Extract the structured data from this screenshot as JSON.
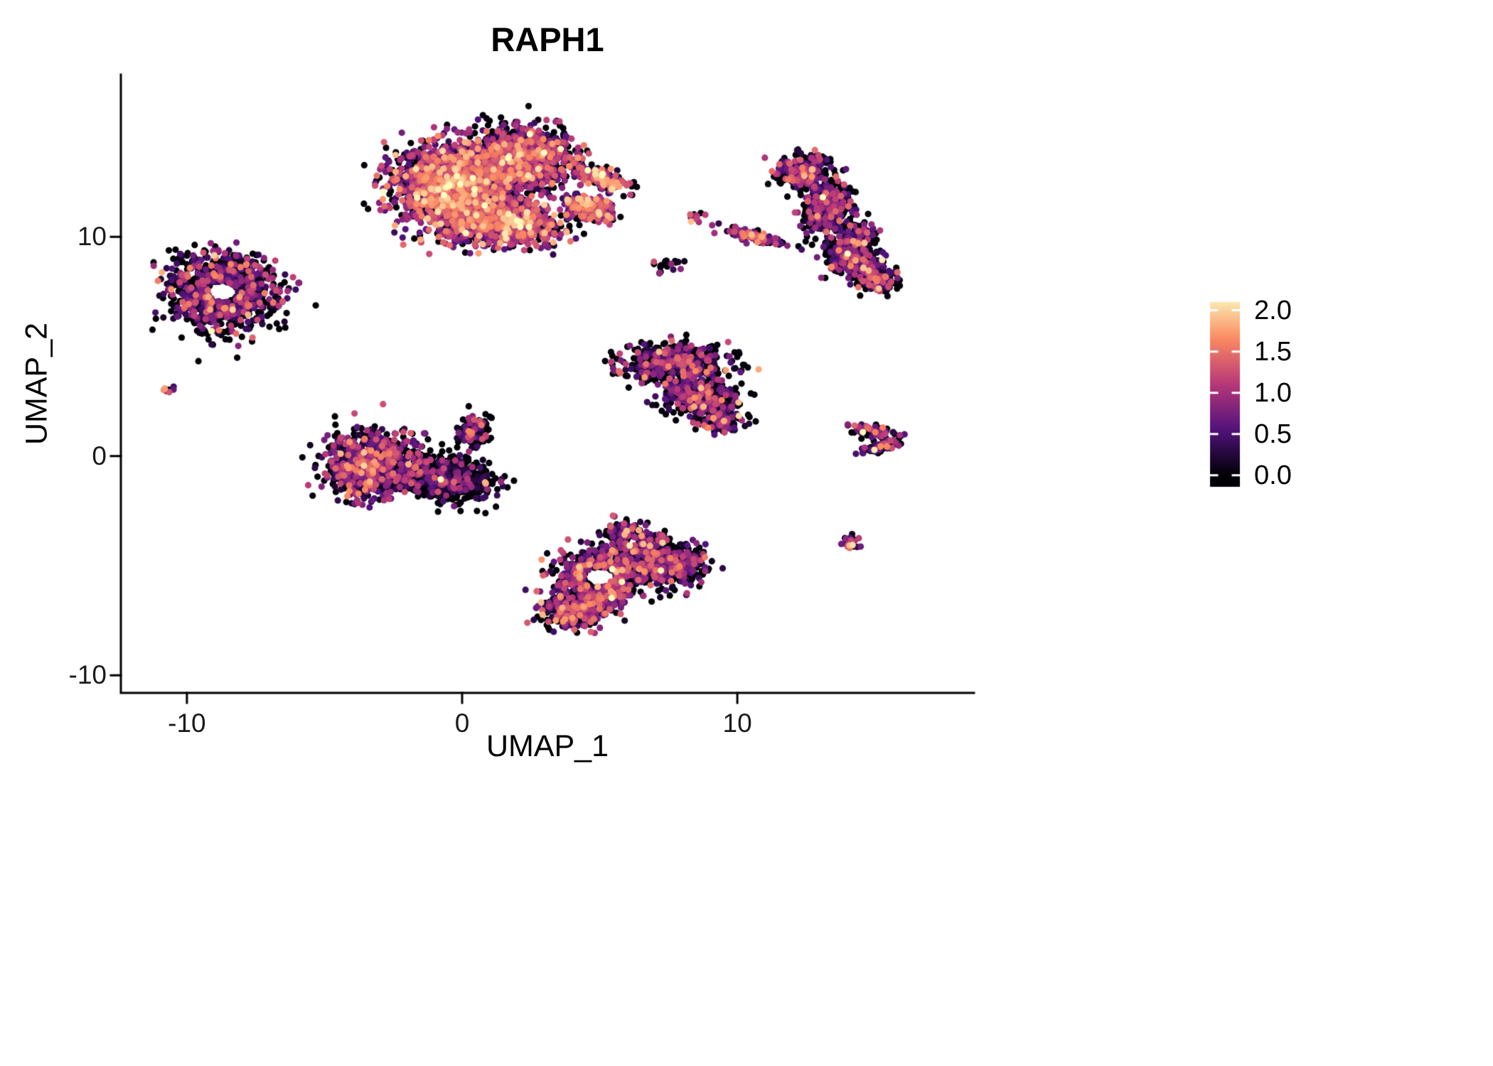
{
  "chart_data": {
    "type": "scatter",
    "subtype": "umap-feature-plot",
    "title": "RAPH1",
    "xlabel": "UMAP_1",
    "ylabel": "UMAP_2",
    "xlim": [
      -12.4,
      18.6
    ],
    "ylim": [
      -10.8,
      17.4
    ],
    "x_ticks": [
      {
        "label": "-10",
        "value": -10
      },
      {
        "label": "0",
        "value": 0
      },
      {
        "label": "10",
        "value": 10
      }
    ],
    "y_ticks": [
      {
        "label": "-10",
        "value": -10
      },
      {
        "label": "0",
        "value": 0
      },
      {
        "label": "10",
        "value": 10
      }
    ],
    "grid": false,
    "legend_position": "right",
    "point_radius_px": 4.6,
    "axis_color": "#000000",
    "background_color": "#ffffff",
    "color_scale_max": 2.2,
    "colorbar": {
      "stops": [
        "#000004",
        "#51127c",
        "#b73779",
        "#fb8861",
        "#fcfdbf"
      ],
      "ticks": [
        {
          "label": "2.0",
          "value": 2.0
        },
        {
          "label": "1.5",
          "value": 1.5
        },
        {
          "label": "1.0",
          "value": 1.0
        },
        {
          "label": "0.5",
          "value": 0.5
        },
        {
          "label": "0.0",
          "value": 0.0
        }
      ]
    },
    "clusters": [
      {
        "name": "top-main-core",
        "cx": -0.2,
        "cy": 12.3,
        "rx": 2.0,
        "ry": 1.8,
        "rot": 0,
        "n": 2300,
        "p0": 0.25,
        "mu": 0.95
      },
      {
        "name": "top-main-upper-right",
        "cx": 2.2,
        "cy": 13.6,
        "rx": 1.7,
        "ry": 1.3,
        "rot": 0,
        "n": 1300,
        "p0": 0.4,
        "mu": 0.75
      },
      {
        "name": "top-main-lower-band",
        "cx": 1.6,
        "cy": 10.6,
        "rx": 1.9,
        "ry": 1.0,
        "rot": 0,
        "n": 900,
        "p0": 0.3,
        "mu": 0.95
      },
      {
        "name": "top-main-beak-upper",
        "cx": 5.0,
        "cy": 12.7,
        "rx": 1.1,
        "ry": 0.4,
        "rot": -30,
        "n": 200,
        "p0": 0.3,
        "mu": 1.0
      },
      {
        "name": "top-main-beak-lower",
        "cx": 4.6,
        "cy": 11.3,
        "rx": 0.9,
        "ry": 0.55,
        "rot": -20,
        "n": 260,
        "p0": 0.25,
        "mu": 1.0
      },
      {
        "name": "left-ring",
        "cx": -8.7,
        "cy": 7.5,
        "rx": 2.0,
        "ry": 1.7,
        "rot": -10,
        "n": 950,
        "p0": 0.45,
        "mu": 0.6,
        "hole": 0.3
      },
      {
        "name": "far-left-dot",
        "cx": -10.75,
        "cy": 3.0,
        "rx": 0.22,
        "ry": 0.18,
        "rot": 0,
        "n": 10,
        "p0": 0.2,
        "mu": 1.0
      },
      {
        "name": "center-left-west",
        "cx": -3.3,
        "cy": -0.4,
        "rx": 1.6,
        "ry": 1.5,
        "rot": 0,
        "n": 850,
        "p0": 0.38,
        "mu": 0.7
      },
      {
        "name": "center-left-east",
        "cx": -0.7,
        "cy": -1.0,
        "rx": 1.7,
        "ry": 1.0,
        "rot": -15,
        "n": 750,
        "p0": 0.72,
        "mu": 0.45
      },
      {
        "name": "center-left-spur",
        "cx": 0.4,
        "cy": 1.2,
        "rx": 0.6,
        "ry": 0.7,
        "rot": 0,
        "n": 140,
        "p0": 0.6,
        "mu": 0.5
      },
      {
        "name": "bottom-ring",
        "cx": 5.0,
        "cy": -5.5,
        "rx": 1.5,
        "ry": 1.2,
        "rot": 0,
        "n": 600,
        "p0": 0.35,
        "mu": 0.75,
        "hole": 0.4
      },
      {
        "name": "bottom-east",
        "cx": 7.3,
        "cy": -4.8,
        "rx": 1.5,
        "ry": 1.0,
        "rot": -20,
        "n": 700,
        "p0": 0.45,
        "mu": 0.6
      },
      {
        "name": "bottom-south",
        "cx": 4.2,
        "cy": -7.0,
        "rx": 1.3,
        "ry": 0.8,
        "rot": 10,
        "n": 450,
        "p0": 0.35,
        "mu": 0.75
      },
      {
        "name": "bottom-north-bump",
        "cx": 6.0,
        "cy": -3.6,
        "rx": 0.8,
        "ry": 0.5,
        "rot": 0,
        "n": 150,
        "p0": 0.5,
        "mu": 0.6
      },
      {
        "name": "mid-right-top",
        "cx": 7.8,
        "cy": 4.2,
        "rx": 1.9,
        "ry": 0.9,
        "rot": 0,
        "n": 550,
        "p0": 0.5,
        "mu": 0.6
      },
      {
        "name": "mid-right-mid",
        "cx": 8.6,
        "cy": 2.6,
        "rx": 1.4,
        "ry": 0.9,
        "rot": -20,
        "n": 450,
        "p0": 0.55,
        "mu": 0.55
      },
      {
        "name": "mid-right-tip",
        "cx": 9.4,
        "cy": 1.6,
        "rx": 0.7,
        "ry": 0.5,
        "rot": 0,
        "n": 120,
        "p0": 0.5,
        "mu": 0.6
      },
      {
        "name": "right-crescent-1",
        "cx": 12.4,
        "cy": 13.0,
        "rx": 0.9,
        "ry": 0.8,
        "rot": 20,
        "n": 300,
        "p0": 0.5,
        "mu": 0.6
      },
      {
        "name": "right-crescent-2",
        "cx": 13.3,
        "cy": 11.3,
        "rx": 0.8,
        "ry": 1.2,
        "rot": -15,
        "n": 420,
        "p0": 0.5,
        "mu": 0.6
      },
      {
        "name": "right-crescent-3",
        "cx": 14.2,
        "cy": 9.4,
        "rx": 0.8,
        "ry": 1.1,
        "rot": -20,
        "n": 420,
        "p0": 0.5,
        "mu": 0.6
      },
      {
        "name": "right-crescent-4",
        "cx": 15.0,
        "cy": 8.2,
        "rx": 0.8,
        "ry": 0.6,
        "rot": -30,
        "n": 220,
        "p0": 0.5,
        "mu": 0.6
      },
      {
        "name": "small-pair",
        "cx": 8.5,
        "cy": 10.9,
        "rx": 0.28,
        "ry": 0.2,
        "rot": 0,
        "n": 14,
        "p0": 0.3,
        "mu": 0.9
      },
      {
        "name": "small-scatter",
        "cx": 7.5,
        "cy": 8.7,
        "rx": 0.6,
        "ry": 0.35,
        "rot": 0,
        "n": 22,
        "p0": 0.5,
        "mu": 0.5
      },
      {
        "name": "small-streak",
        "cx": 10.7,
        "cy": 10.0,
        "rx": 1.15,
        "ry": 0.22,
        "rot": -17,
        "n": 110,
        "p0": 0.35,
        "mu": 0.8
      },
      {
        "name": "right-chevron-upper",
        "cx": 15.1,
        "cy": 1.1,
        "rx": 0.95,
        "ry": 0.28,
        "rot": -12,
        "n": 80,
        "p0": 0.4,
        "mu": 0.7
      },
      {
        "name": "right-chevron-lower",
        "cx": 15.2,
        "cy": 0.45,
        "rx": 0.75,
        "ry": 0.25,
        "rot": 18,
        "n": 60,
        "p0": 0.4,
        "mu": 0.7
      },
      {
        "name": "small-bottom-right",
        "cx": 14.15,
        "cy": -3.85,
        "rx": 0.33,
        "ry": 0.28,
        "rot": 0,
        "n": 30,
        "p0": 0.3,
        "mu": 0.8
      }
    ]
  }
}
